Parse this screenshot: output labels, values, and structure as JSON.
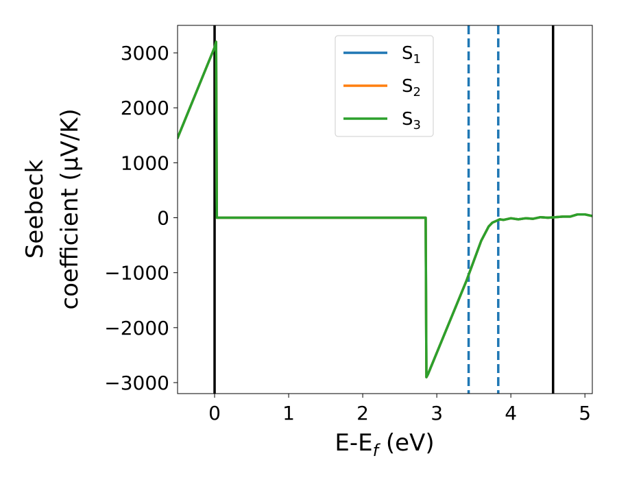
{
  "chart_data": {
    "type": "line",
    "xlabel_main": "E-E",
    "xlabel_sub": "f",
    "xlabel_unit": " (eV)",
    "ylabel_line1": "Seebeck",
    "ylabel_line2": "coefficient  (μV/K)",
    "xlim": [
      -0.5,
      5.1
    ],
    "ylim": [
      -3200,
      3500
    ],
    "xticks": [
      0,
      1,
      2,
      3,
      4,
      5
    ],
    "xtick_labels": [
      "0",
      "1",
      "2",
      "3",
      "4",
      "5"
    ],
    "yticks": [
      3000,
      2000,
      1000,
      0,
      -1000,
      -2000,
      -3000
    ],
    "ytick_labels": [
      "3000",
      "2000",
      "1000",
      "0",
      "−1000",
      "−2000",
      "−3000"
    ],
    "legend_placement": "top-center",
    "series": [
      {
        "name_main": "S",
        "name_sub": "1",
        "color": "#1f77b4",
        "x": [
          -0.5,
          0.0,
          0.02,
          0.03,
          2.85,
          2.86,
          2.88,
          3.4,
          3.6,
          3.7,
          3.75,
          3.8,
          3.85,
          3.9,
          4.0,
          4.1,
          4.2,
          4.3,
          4.4,
          4.5,
          4.6,
          4.7,
          4.8,
          4.9,
          5.0,
          5.1
        ],
        "y": [
          1450,
          3100,
          3200,
          0,
          0,
          -2900,
          -2850,
          -1150,
          -420,
          -160,
          -90,
          -60,
          -30,
          -40,
          -10,
          -30,
          -10,
          -20,
          10,
          0,
          10,
          20,
          20,
          60,
          60,
          30
        ]
      },
      {
        "name_main": "S",
        "name_sub": "2",
        "color": "#ff7f0e",
        "x": [
          -0.5,
          0.0,
          0.02,
          0.03,
          2.85,
          2.86,
          2.88,
          3.4,
          3.6,
          3.7,
          3.75,
          3.8,
          3.85,
          3.9,
          4.0,
          4.1,
          4.2,
          4.3,
          4.4,
          4.5,
          4.6,
          4.7,
          4.8,
          4.9,
          5.0,
          5.1
        ],
        "y": [
          1450,
          3100,
          3200,
          0,
          0,
          -2900,
          -2850,
          -1150,
          -420,
          -160,
          -90,
          -60,
          -30,
          -40,
          -10,
          -30,
          -10,
          -20,
          10,
          0,
          10,
          20,
          20,
          60,
          60,
          30
        ]
      },
      {
        "name_main": "S",
        "name_sub": "3",
        "color": "#2ca02c",
        "x": [
          -0.5,
          0.0,
          0.02,
          0.03,
          2.85,
          2.86,
          2.88,
          3.4,
          3.6,
          3.7,
          3.75,
          3.8,
          3.85,
          3.9,
          4.0,
          4.1,
          4.2,
          4.3,
          4.4,
          4.5,
          4.6,
          4.7,
          4.8,
          4.9,
          5.0,
          5.1
        ],
        "y": [
          1450,
          3100,
          3200,
          0,
          0,
          -2900,
          -2850,
          -1150,
          -420,
          -160,
          -90,
          -60,
          -30,
          -40,
          -10,
          -30,
          -10,
          -20,
          10,
          0,
          10,
          20,
          20,
          60,
          60,
          30
        ]
      }
    ],
    "vertical_lines": [
      {
        "x": 0.0,
        "style": "solid",
        "color": "#000000"
      },
      {
        "x": 4.57,
        "style": "solid",
        "color": "#000000"
      },
      {
        "x": 3.43,
        "style": "dashed",
        "color": "#1f77b4"
      },
      {
        "x": 3.83,
        "style": "dashed",
        "color": "#1f77b4"
      }
    ]
  }
}
